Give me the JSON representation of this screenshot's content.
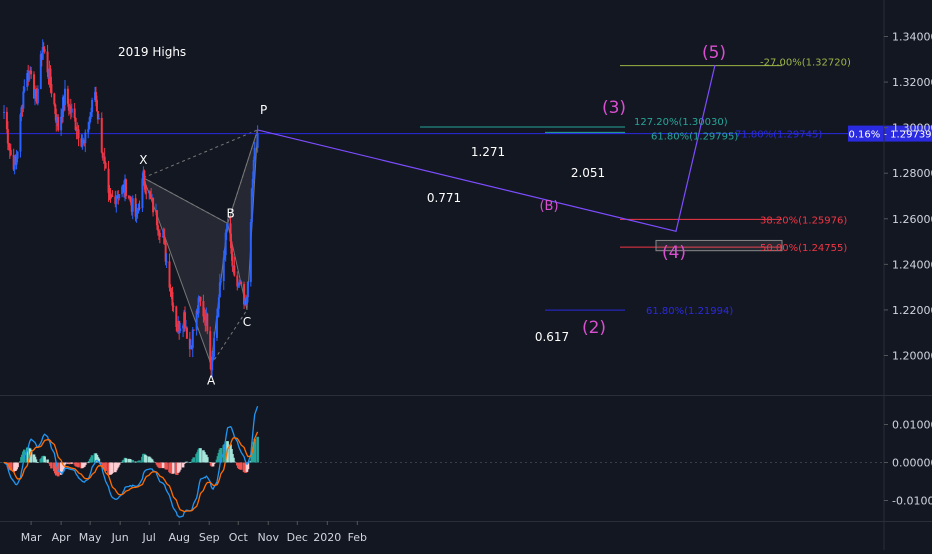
{
  "chart_data": [
    {
      "type": "candlestick",
      "panel": "price",
      "ylim": [
        1.19,
        1.35
      ],
      "y_ticks": [
        1.2,
        1.22,
        1.24,
        1.26,
        1.28,
        1.3,
        1.32,
        1.34
      ],
      "y_tick_labels": [
        "1.20000",
        "1.22000",
        "1.24000",
        "1.26000",
        "1.28000",
        "1.30000",
        "1.32000",
        "1.34000"
      ],
      "x_tick_labels": [
        "Mar",
        "Apr",
        "May",
        "Jun",
        "Jul",
        "Aug",
        "Sep",
        "Oct",
        "Nov",
        "Dec",
        "2020",
        "Feb"
      ],
      "current_price_label": "0.16% - 1.29739",
      "current_price": 1.29739,
      "annotations": {
        "highs_label": "2019 Highs",
        "pattern_points": [
          {
            "label": "X",
            "date": "2019-06-25",
            "price": 1.278
          },
          {
            "label": "A",
            "date": "2019-09-03",
            "price": 1.196
          },
          {
            "label": "B",
            "date": "2019-09-20",
            "price": 1.258
          },
          {
            "label": "C",
            "date": "2019-10-10",
            "price": 1.22
          },
          {
            "label": "P",
            "date": "2019-10-21",
            "price": 1.299
          }
        ],
        "ratios": [
          {
            "label": "1.271"
          },
          {
            "label": "0.771"
          },
          {
            "label": "2.051"
          },
          {
            "label": "0.617"
          }
        ],
        "wave_labels": [
          "(2)",
          "(3)",
          "(4)",
          "(5)",
          "(B)"
        ],
        "fib_levels": [
          {
            "label": "-27.00%(1.32720)",
            "price": 1.3272,
            "color": "#9bb548"
          },
          {
            "label": "127.20%(1.30030)",
            "price": 1.3003,
            "color": "#26a69a"
          },
          {
            "label": "61.80%(1.29795)",
            "price": 1.29795,
            "color": "#26a69a"
          },
          {
            "label": "71.80%(1.29745)",
            "price": 1.29745,
            "color": "#2a2ae0"
          },
          {
            "label": "38.20%(1.25976)",
            "price": 1.25976,
            "color": "#f23645"
          },
          {
            "label": "50.00%(1.24755)",
            "price": 1.24755,
            "color": "#f23645"
          },
          {
            "label": "61.80%(1.21994)",
            "price": 1.21994,
            "color": "#2a2ae0"
          }
        ]
      }
    },
    {
      "type": "macd",
      "panel": "indicator",
      "ylim": [
        -0.0135,
        0.0155
      ],
      "y_ticks": [
        0.01,
        0.0,
        -0.01
      ],
      "y_tick_labels": [
        "0.01000",
        "0.00000",
        "-0.01000"
      ],
      "series": [
        {
          "name": "MACD",
          "color": "#2196f3"
        },
        {
          "name": "Signal",
          "color": "#ff6d00"
        }
      ]
    }
  ],
  "colors": {
    "background": "#131722",
    "up": "#2962ff",
    "down": "#f23645",
    "hist_pos": "#a6e3d9",
    "hist_pos_strong": "#26a69a",
    "hist_neg": "#ffcdd2",
    "hist_neg_strong": "#ef5350",
    "wave": "#d94fd0",
    "pattern": "#b0b0b0",
    "projection": "#7c4dff",
    "price_tag_bg": "#2a2ae0"
  }
}
